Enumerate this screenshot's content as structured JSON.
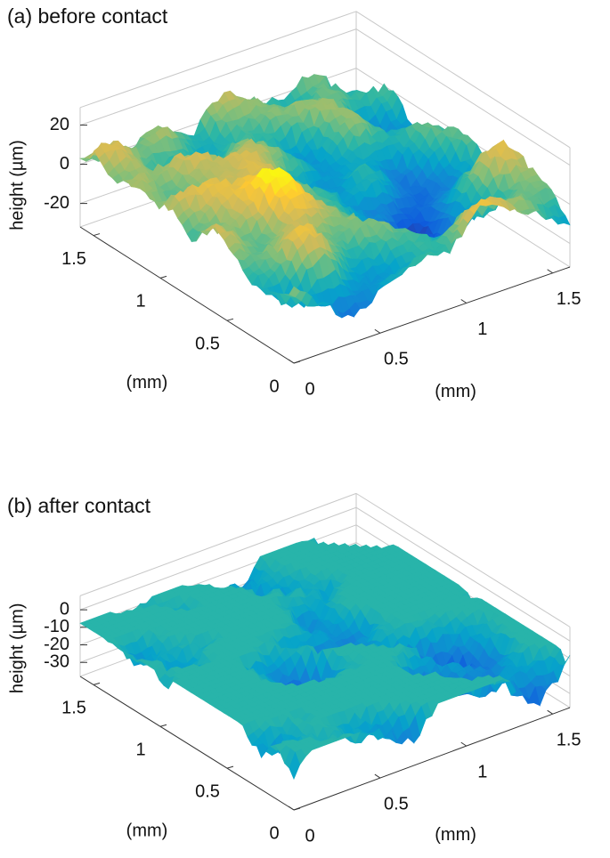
{
  "chart_data": [
    {
      "type": "surface",
      "title": "(a)  before contact",
      "xlabel": "(mm)",
      "ylabel": "(mm)",
      "zlabel": "height (µm)",
      "xlim": [
        0,
        1.6
      ],
      "ylim": [
        0,
        1.6
      ],
      "zlim": [
        -32,
        29
      ],
      "xticks": [
        0,
        0.5,
        1,
        1.5
      ],
      "yticks": [
        0,
        0.5,
        1,
        1.5
      ],
      "zticks": [
        -20,
        0,
        20
      ]
    },
    {
      "type": "surface",
      "title": "(b)  after contact",
      "xlabel": "(mm)",
      "ylabel": "(mm)",
      "zlabel": "height (µm)",
      "xlim": [
        0,
        1.6
      ],
      "ylim": [
        0,
        1.6
      ],
      "zlim": [
        -38,
        8
      ],
      "xticks": [
        0,
        0.5,
        1,
        1.5
      ],
      "yticks": [
        0,
        0.5,
        1,
        1.5
      ],
      "zticks": [
        -30,
        -20,
        -10,
        0
      ]
    }
  ]
}
